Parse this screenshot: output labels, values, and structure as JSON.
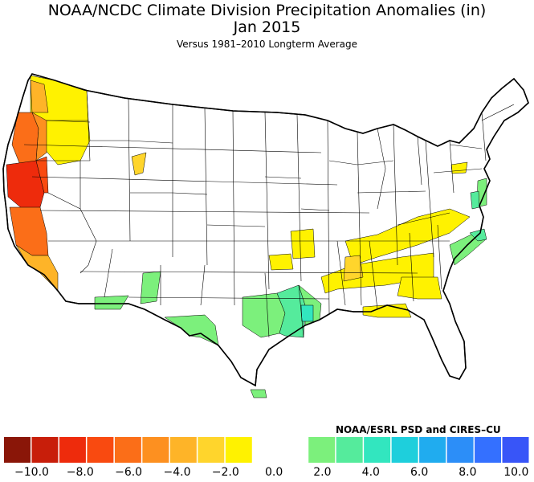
{
  "header": {
    "title": "NOAA/NCDC Climate Division Precipitation Anomalies (in)",
    "period": "Jan 2015",
    "subtitle": "Versus 1981–2010 Longterm Average"
  },
  "credit": "NOAA/ESRL PSD and CIRES–CU",
  "legend": {
    "colors": [
      "#8a1608",
      "#c81e0a",
      "#ee2b0c",
      "#f94a10",
      "#fb6e18",
      "#fd9020",
      "#feb428",
      "#ffd52c",
      "#fff200",
      "#ffffff",
      "#ffffff",
      "#7cf07c",
      "#55eb9c",
      "#32e6bf",
      "#1ecfdc",
      "#20acef",
      "#2c8ef8",
      "#3470ff",
      "#3855f8"
    ],
    "ticks": [
      "−10.0",
      "−8.0",
      "−6.0",
      "−4.0",
      "−2.0",
      "0.0",
      "2.0",
      "4.0",
      "6.0",
      "8.0",
      "10.0"
    ]
  },
  "map": {
    "land_color": "#ffffff",
    "border_color": "#000000",
    "anomaly_regions": [
      {
        "region": "Washington",
        "category": "-2 to 0",
        "color": "#fff200"
      },
      {
        "region": "Oregon coast",
        "category": "-6 to -4",
        "color": "#fb6e18"
      },
      {
        "region": "Northern California",
        "category": "-8 to -6",
        "color": "#ee2b0c"
      },
      {
        "region": "Central California",
        "category": "-6 to -4",
        "color": "#fb6e18"
      },
      {
        "region": "Southern California",
        "category": "-4 to -2",
        "color": "#feb428"
      },
      {
        "region": "Southern Texas",
        "category": "0 to 2",
        "color": "#7cf07c"
      },
      {
        "region": "East Texas",
        "category": "2 to 4",
        "color": "#55eb9c"
      },
      {
        "region": "Tennessee Valley",
        "category": "-2 to 0",
        "color": "#fff200"
      },
      {
        "region": "North Carolina coast",
        "category": "0 to 2",
        "color": "#7cf07c"
      },
      {
        "region": "New Jersey",
        "category": "0 to 2",
        "color": "#7cf07c"
      }
    ]
  }
}
